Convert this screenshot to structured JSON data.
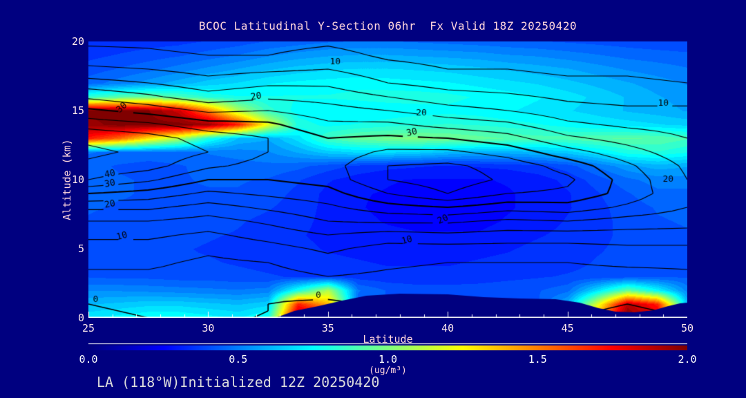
{
  "title": "BCOC Latitudinal Y-Section 06hr  Fx Valid 18Z 20250420",
  "footer": "LA (118°W)Initialized 12Z 20250420",
  "colors": {
    "background": "#000080",
    "terrain": "#000080",
    "contour_line": "#000000",
    "axis_line": "#ffffff",
    "title_text": "#ffd6dc",
    "tick_text": "#ffe9ec",
    "footer_text": "#dcdcdc"
  },
  "axes": {
    "x": {
      "title": "Latitude",
      "min": 25,
      "max": 50,
      "major_ticks": [
        25,
        30,
        35,
        40,
        45,
        50
      ],
      "minor_step": 1
    },
    "y": {
      "title": "Altitude (km)",
      "min": 0,
      "max": 20,
      "major_ticks": [
        0,
        5,
        10,
        15,
        20
      ],
      "minor_step": 1
    }
  },
  "colorbar": {
    "min": 0.0,
    "max": 2.0,
    "tick_labels": [
      "0.0",
      "0.5",
      "1.0",
      "1.5",
      "2.0"
    ],
    "units": "(ug/m³)",
    "palette": "jet"
  },
  "chart_data": {
    "type": "heatmap",
    "subtype": "filled_contour_cross_section",
    "xlabel": "Latitude",
    "ylabel": "Altitude (km)",
    "xlim": [
      25,
      50
    ],
    "ylim": [
      0,
      20
    ],
    "fill_field": {
      "units": "ug/m3",
      "value_scale": 0.01,
      "lat0": 25,
      "dlat": 1.25,
      "alt0": 0,
      "dalt": 1,
      "rows_alt_ascending": [
        [
          72,
          75,
          78,
          78,
          75,
          72,
          80,
          195,
          200,
          60,
          45,
          42,
          42,
          42,
          43,
          45,
          70,
          150,
          200,
          185,
          70
        ],
        [
          62,
          64,
          66,
          66,
          64,
          62,
          66,
          170,
          140,
          45,
          42,
          40,
          40,
          40,
          41,
          42,
          60,
          120,
          190,
          170,
          60
        ],
        [
          52,
          52,
          51,
          50,
          49,
          48,
          50,
          80,
          110,
          48,
          42,
          40,
          40,
          40,
          41,
          42,
          46,
          70,
          95,
          75,
          50
        ],
        [
          42,
          41,
          41,
          40,
          40,
          39,
          38,
          37,
          36,
          35,
          34,
          34,
          34,
          35,
          36,
          37,
          38,
          39,
          40,
          41,
          42
        ],
        [
          40,
          39,
          39,
          38,
          38,
          37,
          36,
          35,
          34,
          33,
          32,
          32,
          32,
          33,
          34,
          35,
          36,
          38,
          39,
          40,
          41
        ],
        [
          40,
          40,
          39,
          38,
          37,
          36,
          35,
          34,
          32,
          31,
          30,
          30,
          30,
          31,
          32,
          34,
          35,
          37,
          39,
          40,
          41
        ],
        [
          41,
          40,
          40,
          39,
          38,
          37,
          35,
          33,
          31,
          30,
          29,
          28,
          28,
          28,
          30,
          32,
          34,
          36,
          39,
          41,
          42
        ],
        [
          42,
          41,
          41,
          40,
          40,
          38,
          36,
          34,
          31,
          29,
          27,
          26,
          26,
          26,
          28,
          30,
          33,
          36,
          39,
          42,
          43
        ],
        [
          43,
          42,
          42,
          41,
          41,
          40,
          38,
          35,
          31,
          28,
          26,
          26,
          25,
          26,
          27,
          29,
          32,
          36,
          40,
          43,
          44
        ],
        [
          44,
          43,
          42,
          42,
          42,
          42,
          40,
          36,
          31,
          28,
          27,
          26,
          26,
          26,
          27,
          29,
          32,
          37,
          42,
          46,
          46
        ],
        [
          45,
          43,
          42,
          42,
          43,
          43,
          42,
          38,
          33,
          30,
          28,
          27,
          27,
          27,
          28,
          30,
          34,
          40,
          46,
          50,
          50
        ],
        [
          44,
          42,
          41,
          42,
          44,
          45,
          46,
          44,
          40,
          36,
          34,
          33,
          32,
          33,
          34,
          36,
          40,
          48,
          56,
          60,
          58
        ],
        [
          48,
          46,
          45,
          46,
          48,
          50,
          52,
          58,
          65,
          68,
          68,
          66,
          62,
          60,
          60,
          62,
          65,
          72,
          80,
          82,
          78
        ],
        [
          170,
          155,
          130,
          110,
          80,
          62,
          58,
          70,
          88,
          95,
          98,
          100,
          98,
          95,
          92,
          90,
          90,
          92,
          93,
          92,
          88
        ],
        [
          195,
          200,
          200,
          200,
          195,
          170,
          120,
          80,
          76,
          78,
          80,
          82,
          83,
          82,
          80,
          78,
          75,
          72,
          70,
          68,
          66
        ],
        [
          200,
          200,
          198,
          185,
          150,
          110,
          85,
          75,
          73,
          73,
          74,
          75,
          76,
          75,
          73,
          71,
          68,
          65,
          62,
          60,
          57
        ],
        [
          85,
          92,
          95,
          90,
          82,
          78,
          78,
          78,
          78,
          79,
          80,
          80,
          79,
          77,
          75,
          73,
          70,
          66,
          62,
          58,
          55
        ],
        [
          45,
          50,
          55,
          60,
          65,
          68,
          72,
          74,
          75,
          76,
          75,
          74,
          73,
          71,
          69,
          67,
          64,
          61,
          58,
          55,
          52
        ],
        [
          40,
          43,
          46,
          50,
          54,
          58,
          62,
          65,
          67,
          68,
          68,
          67,
          66,
          64,
          62,
          60,
          58,
          55,
          52,
          50,
          48
        ],
        [
          36,
          38,
          40,
          42,
          45,
          48,
          52,
          55,
          57,
          58,
          58,
          57,
          56,
          55,
          53,
          52,
          50,
          48,
          46,
          45,
          44
        ],
        [
          33,
          34,
          35,
          36,
          38,
          40,
          43,
          45,
          47,
          48,
          48,
          47,
          46,
          45,
          44,
          43,
          42,
          41,
          40,
          39,
          38
        ]
      ]
    },
    "contour_field": {
      "levels": [
        0,
        5,
        10,
        15,
        20,
        25,
        30,
        35,
        40,
        45
      ],
      "labeled_levels": [
        0,
        10,
        20,
        30,
        40
      ],
      "lat0": 25,
      "dlat": 2.5,
      "alt0": 0,
      "dalt": 1,
      "rows_alt_ascending": [
        [
          -1,
          0,
          0,
          0,
          -2,
          0,
          0,
          0,
          0,
          -1,
          0
        ],
        [
          0,
          1,
          1,
          0,
          -1,
          1,
          1,
          1,
          1,
          0,
          1
        ],
        [
          2,
          2,
          2,
          1,
          2,
          2,
          2,
          2,
          2,
          1,
          2
        ],
        [
          4,
          4,
          3,
          3,
          5,
          4,
          3,
          3,
          3,
          3,
          4
        ],
        [
          6,
          6,
          4,
          5,
          8,
          6,
          5,
          5,
          5,
          6,
          6
        ],
        [
          8,
          8,
          6,
          8,
          11,
          8,
          8,
          8,
          8,
          9,
          9
        ],
        [
          11,
          11,
          9,
          12,
          15,
          13,
          14,
          13,
          13,
          13,
          13
        ],
        [
          15,
          15,
          13,
          16,
          20,
          21,
          21,
          19,
          20,
          18,
          17
        ],
        [
          21,
          21,
          18,
          21,
          24,
          28,
          30,
          27,
          28,
          24,
          20
        ],
        [
          30,
          28,
          24,
          26,
          28,
          35,
          40,
          35,
          34,
          28,
          21
        ],
        [
          40,
          36,
          30,
          30,
          32,
          40,
          43,
          39,
          36,
          28,
          20
        ],
        [
          44,
          42,
          36,
          33,
          33,
          40,
          41,
          38,
          33,
          26,
          19
        ],
        [
          46,
          44,
          40,
          35,
          32,
          36,
          36,
          33,
          27,
          22,
          17
        ],
        [
          44,
          42,
          38,
          35,
          30,
          31,
          30,
          27,
          21,
          18,
          15
        ],
        [
          38,
          36,
          32,
          31,
          26,
          26,
          23,
          21,
          16,
          14,
          13
        ],
        [
          31,
          28,
          24,
          25,
          22,
          20,
          17,
          15,
          12,
          11,
          11
        ],
        [
          24,
          21,
          17,
          19,
          18,
          15,
          12,
          11,
          9,
          8,
          8
        ],
        [
          17,
          15,
          12,
          14,
          14,
          10,
          8,
          7,
          6,
          6,
          5
        ],
        [
          11,
          10,
          8,
          9,
          10,
          7,
          5,
          5,
          4,
          4,
          3
        ],
        [
          7,
          6,
          5,
          5,
          7,
          4,
          3,
          3,
          3,
          3,
          2
        ],
        [
          4,
          4,
          3,
          3,
          4,
          2,
          2,
          2,
          2,
          2,
          1
        ]
      ]
    },
    "contour_labels": [
      {
        "text": "10",
        "lat": 35.3,
        "alt": 18.5,
        "rot": 0
      },
      {
        "text": "20",
        "lat": 32.0,
        "alt": 16.0,
        "rot": -8
      },
      {
        "text": "30",
        "lat": 26.4,
        "alt": 15.2,
        "rot": -42
      },
      {
        "text": "20",
        "lat": 38.9,
        "alt": 14.8,
        "rot": 0
      },
      {
        "text": "30",
        "lat": 38.5,
        "alt": 13.4,
        "rot": -12
      },
      {
        "text": "10",
        "lat": 49.0,
        "alt": 15.5,
        "rot": 0
      },
      {
        "text": "20",
        "lat": 49.2,
        "alt": 10.0,
        "rot": 0
      },
      {
        "text": "40",
        "lat": 25.9,
        "alt": 10.4,
        "rot": -10
      },
      {
        "text": "30",
        "lat": 25.9,
        "alt": 9.7,
        "rot": -10
      },
      {
        "text": "20",
        "lat": 25.9,
        "alt": 8.2,
        "rot": -10
      },
      {
        "text": "10",
        "lat": 26.4,
        "alt": 5.9,
        "rot": -15
      },
      {
        "text": "20",
        "lat": 39.8,
        "alt": 7.1,
        "rot": -25
      },
      {
        "text": "10",
        "lat": 38.3,
        "alt": 5.6,
        "rot": -15
      },
      {
        "text": "0",
        "lat": 25.3,
        "alt": 1.3,
        "rot": 0
      },
      {
        "text": "0",
        "lat": 34.6,
        "alt": 1.6,
        "rot": 0
      }
    ],
    "terrain_profile": [
      [
        32.8,
        0
      ],
      [
        33.6,
        0.5
      ],
      [
        34.6,
        0.85
      ],
      [
        35.6,
        1.25
      ],
      [
        36.6,
        1.6
      ],
      [
        38.0,
        1.75
      ],
      [
        40.0,
        1.7
      ],
      [
        41.5,
        1.5
      ],
      [
        43.0,
        1.4
      ],
      [
        44.5,
        1.35
      ],
      [
        45.5,
        1.1
      ],
      [
        46.3,
        0.7
      ],
      [
        47.0,
        0.45
      ],
      [
        47.8,
        0.4
      ],
      [
        48.6,
        0.55
      ],
      [
        49.2,
        0.85
      ],
      [
        49.7,
        1.05
      ],
      [
        50.0,
        1.1
      ]
    ]
  }
}
